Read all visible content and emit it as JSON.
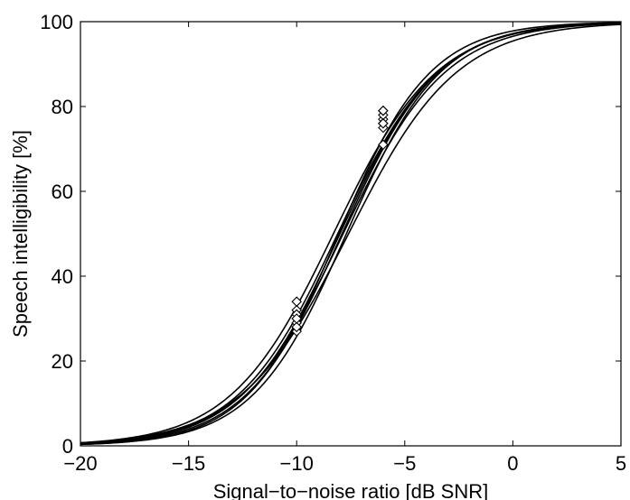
{
  "chart_data": {
    "type": "line",
    "xlabel": "Signal−to−noise ratio [dB SNR]",
    "ylabel": "Speech intelligibility [%]",
    "xlim": [
      -20,
      5
    ],
    "ylim": [
      0,
      100
    ],
    "x_ticks": [
      -20,
      -15,
      -10,
      -5,
      0,
      5
    ],
    "x_tick_labels": [
      "−20",
      "−15",
      "−10",
      "−5",
      "0",
      "5"
    ],
    "y_ticks": [
      0,
      20,
      40,
      60,
      80,
      100
    ],
    "y_tick_labels": [
      "0",
      "20",
      "40",
      "60",
      "80",
      "100"
    ],
    "grid": false,
    "legend": "none",
    "line_color": "#000000",
    "marker": "diamond",
    "series": [
      {
        "srt": -8.0,
        "slope": 0.11,
        "markers": [
          [
            -10,
            30
          ],
          [
            -6,
            77
          ]
        ]
      },
      {
        "srt": -7.9,
        "slope": 0.112,
        "markers": [
          [
            -10,
            29
          ],
          [
            -6,
            78
          ]
        ]
      },
      {
        "srt": -8.1,
        "slope": 0.108,
        "markers": [
          [
            -10,
            32
          ],
          [
            -6,
            76
          ]
        ]
      },
      {
        "srt": -7.7,
        "slope": 0.115,
        "markers": [
          [
            -10,
            27
          ],
          [
            -6,
            79
          ]
        ]
      },
      {
        "srt": -8.3,
        "slope": 0.105,
        "markers": [
          [
            -10,
            34
          ],
          [
            -6,
            75
          ]
        ]
      },
      {
        "srt": -7.6,
        "slope": 0.1,
        "markers": [
          [
            -10,
            28
          ],
          [
            -6,
            71
          ]
        ]
      },
      {
        "srt": -8.05,
        "slope": 0.118,
        "markers": [
          [
            -10,
            31
          ],
          [
            -6,
            79
          ]
        ]
      },
      {
        "srt": -7.85,
        "slope": 0.106,
        "markers": [
          [
            -10,
            30
          ],
          [
            -6,
            76
          ]
        ]
      }
    ]
  }
}
